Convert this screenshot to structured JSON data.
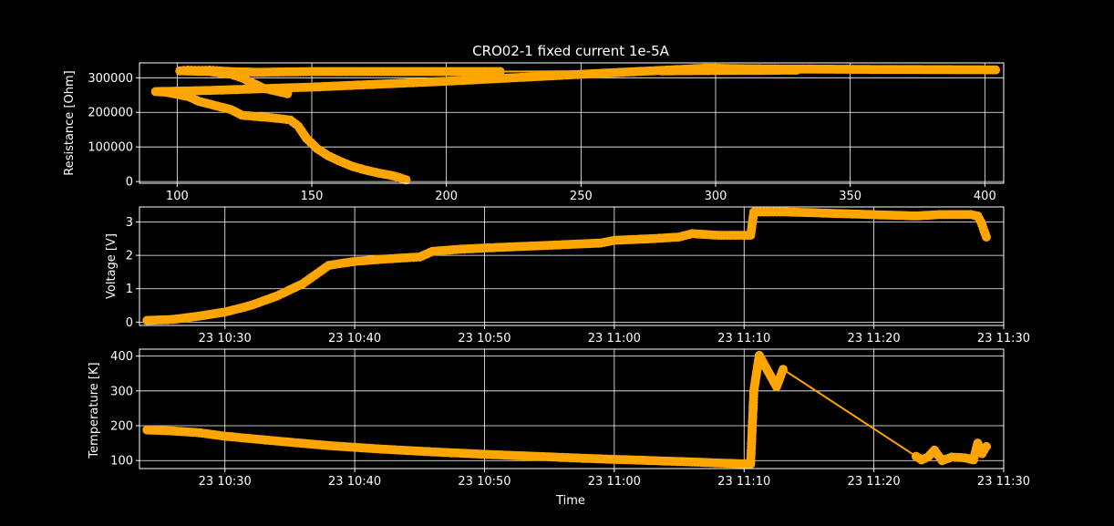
{
  "figure": {
    "background": "#000000",
    "foreground": "#ffffff",
    "series_color": "#ffa500"
  },
  "chart_data": [
    {
      "type": "line",
      "title": "CRO02-1 fixed current 1e-5A",
      "xlabel": "",
      "ylabel": "Resistance [Ohm]",
      "xlim": [
        86,
        407
      ],
      "ylim": [
        -5000,
        343000
      ],
      "xticks": [
        100,
        150,
        200,
        250,
        300,
        350,
        400
      ],
      "yticks": [
        0,
        100000,
        200000,
        300000
      ],
      "grid": true,
      "marker": "circle",
      "points": [
        [
          185,
          5000
        ],
        [
          183,
          10000
        ],
        [
          180,
          17000
        ],
        [
          175,
          24000
        ],
        [
          170,
          33000
        ],
        [
          165,
          44000
        ],
        [
          160,
          60000
        ],
        [
          156,
          75000
        ],
        [
          152,
          95000
        ],
        [
          148,
          125000
        ],
        [
          145,
          160000
        ],
        [
          142,
          178000
        ],
        [
          138,
          182000
        ],
        [
          134,
          185000
        ],
        [
          129,
          188000
        ],
        [
          124,
          192000
        ],
        [
          120,
          208000
        ],
        [
          116,
          216000
        ],
        [
          112,
          224000
        ],
        [
          108,
          232000
        ],
        [
          104,
          246000
        ],
        [
          100,
          252000
        ],
        [
          96,
          258000
        ],
        [
          92,
          260000
        ],
        [
          110,
          263000
        ],
        [
          150,
          273000
        ],
        [
          200,
          290000
        ],
        [
          250,
          310000
        ],
        [
          297,
          328000
        ],
        [
          310,
          326000
        ],
        [
          361,
          324000
        ],
        [
          404,
          323000
        ],
        [
          330,
          322000
        ],
        [
          280,
          320000
        ],
        [
          220,
          318000
        ],
        [
          180,
          318000
        ],
        [
          150,
          318000
        ],
        [
          130,
          316000
        ],
        [
          120,
          318000
        ],
        [
          116,
          320000
        ],
        [
          112,
          322000
        ],
        [
          108,
          321000
        ],
        [
          104,
          322000
        ],
        [
          101,
          320000
        ],
        [
          112,
          318000
        ],
        [
          120,
          310000
        ],
        [
          124,
          300000
        ],
        [
          132,
          270000
        ],
        [
          141,
          254000
        ]
      ]
    },
    {
      "type": "line",
      "title": "",
      "xlabel": "",
      "ylabel": "Voltage [V]",
      "xlim": [
        "10:23:25",
        "11:30:00"
      ],
      "ylim": [
        -0.1,
        3.45
      ],
      "xticks": [
        "10:30",
        "10:40",
        "10:50",
        "11:00",
        "11:10",
        "11:20",
        "11:30"
      ],
      "xticklabels": [
        "23 10:30",
        "23 10:40",
        "23 10:50",
        "23 11:00",
        "23 11:10",
        "23 11:20",
        "23 11:30"
      ],
      "yticks": [
        0,
        1,
        2,
        3
      ],
      "grid": true,
      "marker": "circle",
      "points": [
        [
          "10:24:00",
          0.05
        ],
        [
          "10:26:00",
          0.08
        ],
        [
          "10:28:00",
          0.18
        ],
        [
          "10:30:00",
          0.3
        ],
        [
          "10:32:00",
          0.5
        ],
        [
          "10:34:00",
          0.78
        ],
        [
          "10:36:00",
          1.15
        ],
        [
          "10:38:00",
          1.7
        ],
        [
          "10:40:00",
          1.82
        ],
        [
          "10:42:00",
          1.88
        ],
        [
          "10:44:00",
          1.93
        ],
        [
          "10:45:00",
          1.95
        ],
        [
          "10:46:00",
          2.12
        ],
        [
          "10:48:00",
          2.18
        ],
        [
          "10:50:00",
          2.22
        ],
        [
          "10:55:00",
          2.3
        ],
        [
          "10:59:00",
          2.37
        ],
        [
          "11:00:00",
          2.45
        ],
        [
          "11:03:00",
          2.5
        ],
        [
          "11:05:00",
          2.55
        ],
        [
          "11:06:00",
          2.65
        ],
        [
          "11:08:00",
          2.6
        ],
        [
          "11:10:30",
          2.6
        ],
        [
          "11:10:45",
          3.3
        ],
        [
          "11:11:15",
          3.3
        ],
        [
          "11:12:30",
          3.3
        ],
        [
          "11:13:15",
          3.3
        ],
        [
          "11:23:15",
          3.18
        ],
        [
          "11:25:00",
          3.22
        ],
        [
          "11:27:30",
          3.22
        ],
        [
          "11:28:00",
          3.18
        ],
        [
          "11:28:15",
          3.0
        ],
        [
          "11:28:40",
          2.55
        ]
      ]
    },
    {
      "type": "line",
      "title": "",
      "xlabel": "Time",
      "ylabel": "Temperature [K]",
      "xlim": [
        "10:23:25",
        "11:30:00"
      ],
      "ylim": [
        77,
        420
      ],
      "xticks": [
        "10:30",
        "10:40",
        "10:50",
        "11:00",
        "11:10",
        "11:20",
        "11:30"
      ],
      "xticklabels": [
        "23 10:30",
        "23 10:40",
        "23 10:50",
        "23 11:00",
        "23 11:10",
        "23 11:20",
        "23 11:30"
      ],
      "yticks": [
        100,
        200,
        300,
        400
      ],
      "grid": true,
      "marker": "circle",
      "points": [
        [
          "10:24:00",
          188
        ],
        [
          "10:26:00",
          185
        ],
        [
          "10:28:00",
          180
        ],
        [
          "10:30:00",
          170
        ],
        [
          "10:34:00",
          156
        ],
        [
          "10:38:00",
          143
        ],
        [
          "10:42:00",
          133
        ],
        [
          "10:46:00",
          125
        ],
        [
          "10:50:00",
          118
        ],
        [
          "10:54:00",
          112
        ],
        [
          "10:58:00",
          106
        ],
        [
          "11:02:00",
          101
        ],
        [
          "11:06:00",
          96
        ],
        [
          "11:08:00",
          93
        ],
        [
          "11:10:30",
          90
        ],
        [
          "11:10:45",
          300
        ],
        [
          "11:11:10",
          402
        ],
        [
          "11:12:30",
          312
        ],
        [
          "11:13:00",
          362
        ],
        [
          "11:23:15",
          112
        ],
        [
          "11:23:40",
          102
        ],
        [
          "11:24:10",
          110
        ],
        [
          "11:24:40",
          130
        ],
        [
          "11:25:15",
          100
        ],
        [
          "11:26:00",
          110
        ],
        [
          "11:27:00",
          108
        ],
        [
          "11:27:40",
          102
        ],
        [
          "11:28:00",
          150
        ],
        [
          "11:28:20",
          120
        ],
        [
          "11:28:40",
          140
        ]
      ]
    }
  ]
}
